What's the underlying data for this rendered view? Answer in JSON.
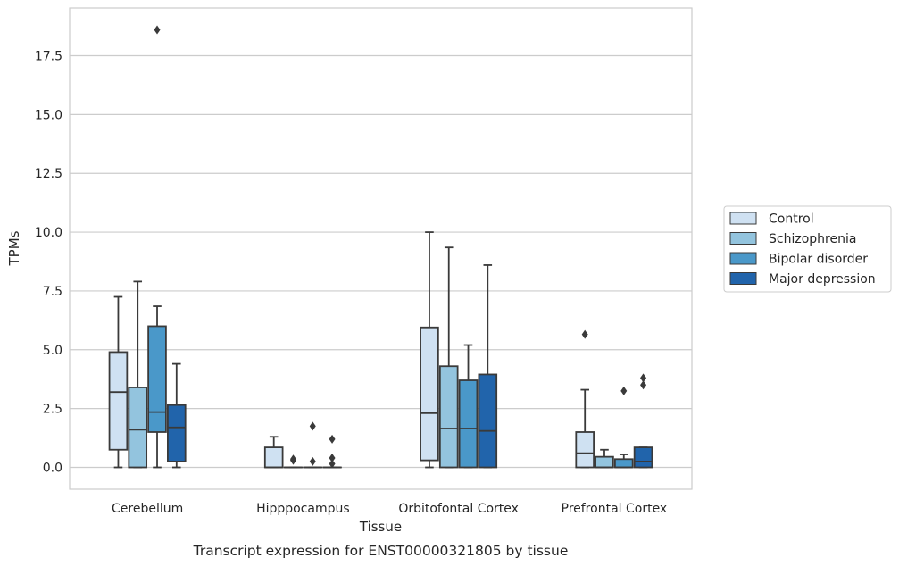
{
  "chart_data": {
    "type": "boxplot",
    "caption": "Transcript expression for ENST00000321805 by tissue",
    "xlabel": "Tissue",
    "ylabel": "TPMs",
    "ylim": [
      -0.9,
      19.4
    ],
    "yticks": [
      "0.0",
      "2.5",
      "5.0",
      "7.5",
      "10.0",
      "12.5",
      "15.0",
      "17.5"
    ],
    "ytick_values": [
      0,
      2.5,
      5,
      7.5,
      10,
      12.5,
      15,
      17.5
    ],
    "grid": "horizontal",
    "legend_position": "right",
    "categories": [
      "Cerebellum",
      "Hipppocampus",
      "Orbitofontal Cortex",
      "Prefrontal Cortex"
    ],
    "series": [
      {
        "name": "Control",
        "color": "#cfe1f2",
        "boxes": [
          {
            "whislo": 0.0,
            "q1": 0.75,
            "med": 3.2,
            "q3": 4.9,
            "whishi": 7.25,
            "fliers": []
          },
          {
            "whislo": 0.0,
            "q1": 0.0,
            "med": 0.0,
            "q3": 0.85,
            "whishi": 1.3,
            "fliers": []
          },
          {
            "whislo": 0.0,
            "q1": 0.3,
            "med": 2.3,
            "q3": 5.95,
            "whishi": 10.0,
            "fliers": []
          },
          {
            "whislo": 0.0,
            "q1": 0.0,
            "med": 0.6,
            "q3": 1.5,
            "whishi": 3.3,
            "fliers": [
              5.65
            ]
          }
        ]
      },
      {
        "name": "Schizophrenia",
        "color": "#93c4de",
        "boxes": [
          {
            "whislo": 0.0,
            "q1": 0.0,
            "med": 1.6,
            "q3": 3.4,
            "whishi": 7.9,
            "fliers": []
          },
          {
            "whislo": 0.0,
            "q1": 0.0,
            "med": 0.0,
            "q3": 0.0,
            "whishi": 0.0,
            "fliers": [
              0.3,
              0.35
            ]
          },
          {
            "whislo": 0.0,
            "q1": 0.0,
            "med": 1.65,
            "q3": 4.3,
            "whishi": 9.35,
            "fliers": []
          },
          {
            "whislo": 0.0,
            "q1": 0.0,
            "med": 0.0,
            "q3": 0.45,
            "whishi": 0.75,
            "fliers": []
          }
        ]
      },
      {
        "name": "Bipolar disorder",
        "color": "#4a98c9",
        "boxes": [
          {
            "whislo": 0.0,
            "q1": 1.5,
            "med": 2.35,
            "q3": 6.0,
            "whishi": 6.85,
            "fliers": [
              18.6
            ]
          },
          {
            "whislo": 0.0,
            "q1": 0.0,
            "med": 0.0,
            "q3": 0.0,
            "whishi": 0.0,
            "fliers": [
              0.25,
              1.75
            ]
          },
          {
            "whislo": 0.0,
            "q1": 0.0,
            "med": 1.65,
            "q3": 3.7,
            "whishi": 5.2,
            "fliers": []
          },
          {
            "whislo": 0.0,
            "q1": 0.0,
            "med": 0.0,
            "q3": 0.35,
            "whishi": 0.55,
            "fliers": [
              3.25
            ]
          }
        ]
      },
      {
        "name": "Major depression",
        "color": "#2164ab",
        "boxes": [
          {
            "whislo": 0.0,
            "q1": 0.25,
            "med": 1.7,
            "q3": 2.65,
            "whishi": 4.4,
            "fliers": []
          },
          {
            "whislo": 0.0,
            "q1": 0.0,
            "med": 0.0,
            "q3": 0.0,
            "whishi": 0.0,
            "fliers": [
              0.15,
              0.4,
              1.2
            ]
          },
          {
            "whislo": 0.0,
            "q1": 0.0,
            "med": 1.55,
            "q3": 3.95,
            "whishi": 8.6,
            "fliers": []
          },
          {
            "whislo": 0.0,
            "q1": 0.0,
            "med": 0.25,
            "q3": 0.85,
            "whishi": 0.85,
            "fliers": [
              3.5,
              3.8
            ]
          }
        ]
      }
    ]
  }
}
